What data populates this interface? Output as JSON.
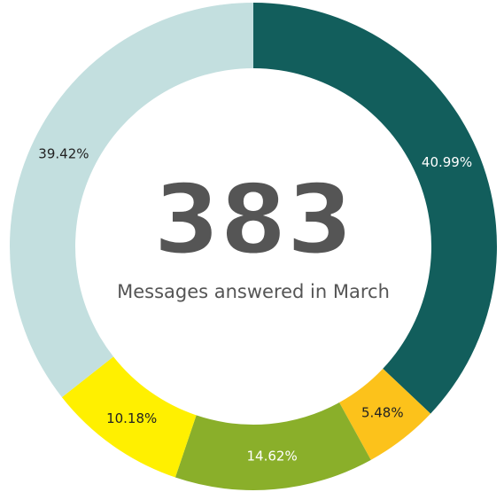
{
  "chart_data": {
    "type": "donut",
    "values": [
      40.99,
      5.48,
      14.62,
      10.18,
      39.42
    ],
    "value_labels": [
      "40.99%",
      "5.48%",
      "14.62%",
      "10.18%",
      "39.42%"
    ],
    "colors": [
      "#125e5c",
      "#fcc21b",
      "#8aaf2a",
      "#fff000",
      "#c3dfdf"
    ],
    "label_colors": [
      "#ffffff",
      "#222222",
      "#ffffff",
      "#222222",
      "#222222"
    ],
    "center_value": 383,
    "center_text": "Messages answered in March"
  }
}
